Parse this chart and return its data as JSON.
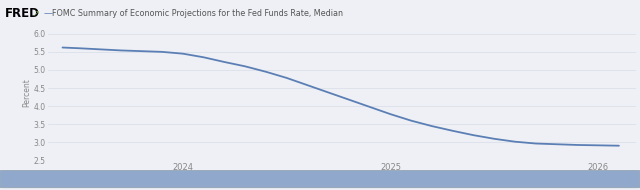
{
  "title": "FOMC Summary of Economic Projections for the Fed Funds Rate, Median",
  "ylabel": "Percent",
  "line_color": "#5b7fb5",
  "line_width": 1.3,
  "background_color": "#eef0f5",
  "plot_bg_color": "#eef0f5",
  "x_values": [
    2023.42,
    2023.5,
    2023.6,
    2023.7,
    2023.8,
    2023.9,
    2024.0,
    2024.1,
    2024.2,
    2024.3,
    2024.4,
    2024.5,
    2024.6,
    2024.7,
    2024.8,
    2024.9,
    2025.0,
    2025.1,
    2025.2,
    2025.3,
    2025.4,
    2025.5,
    2025.6,
    2025.7,
    2025.8,
    2025.9,
    2026.0,
    2026.1
  ],
  "y_values": [
    5.62,
    5.6,
    5.57,
    5.54,
    5.52,
    5.5,
    5.45,
    5.35,
    5.22,
    5.1,
    4.95,
    4.78,
    4.58,
    4.38,
    4.18,
    3.98,
    3.78,
    3.6,
    3.45,
    3.32,
    3.2,
    3.1,
    3.02,
    2.97,
    2.95,
    2.93,
    2.92,
    2.91
  ],
  "ylim": [
    2.5,
    6.25
  ],
  "yticks": [
    2.5,
    3.0,
    3.5,
    4.0,
    4.5,
    5.0,
    5.5,
    6.0
  ],
  "xlim": [
    2023.35,
    2026.18
  ],
  "xtick_years": [
    2024,
    2025,
    2026
  ],
  "scrollbar_color": "#8fa8cc",
  "scrollbar_track": "#c8d0dc",
  "scrollbar_border": "#9aaabb",
  "header_color": "#eef0f5",
  "grid_color": "#d8dce8",
  "tick_color": "#888888",
  "ylabel_color": "#888888",
  "title_color": "#555555",
  "fred_color": "#000000"
}
